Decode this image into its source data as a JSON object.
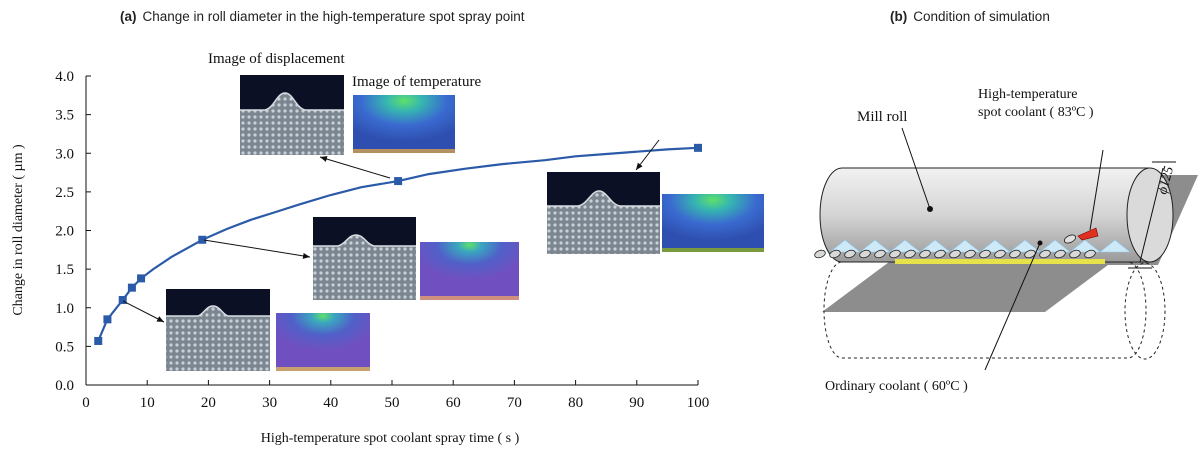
{
  "panel_a": {
    "letter": "(a)",
    "title": "Change in roll diameter in the high-temperature spot spray point"
  },
  "panel_b": {
    "letter": "(b)",
    "title": "Condition of simulation",
    "labels": {
      "mill_roll": "Mill roll",
      "spot_coolant_line1": "High-temperature",
      "spot_coolant_line2": "spot coolant ( 83ºC )",
      "ordinary_coolant": "Ordinary coolant ( 60ºC )",
      "diameter": "ϕ125"
    }
  },
  "insets": {
    "displacement_label": "Image of displacement",
    "temperature_label": "Image of temperature"
  },
  "colors": {
    "line": "#2a5aa8",
    "marker": "#2a5aa8",
    "displacement_bg": "#0c1024",
    "temperature_blue": "#3a6bd0",
    "temperature_purple": "#6a4fc0",
    "hotspot": "#4fdc6a"
  },
  "chart_data": {
    "type": "line",
    "title": "Change in roll diameter in the high-temperature spot spray point",
    "xlabel": "High-temperature spot coolant spray time ( s )",
    "ylabel": "Change in roll diameter ( µm )",
    "xlim": [
      0,
      100
    ],
    "ylim": [
      0,
      4.0
    ],
    "xticks": [
      "0",
      "10",
      "20",
      "30",
      "40",
      "50",
      "60",
      "70",
      "80",
      "90",
      "100"
    ],
    "yticks": [
      "0.0",
      "0.5",
      "1.0",
      "1.5",
      "2.0",
      "2.5",
      "3.0",
      "3.5",
      "4.0"
    ],
    "grid": false,
    "series": [
      {
        "x": [
          2,
          3.5,
          6,
          7.5,
          9,
          19,
          51,
          100
        ],
        "y": [
          0.57,
          0.85,
          1.1,
          1.26,
          1.38,
          1.88,
          2.64,
          3.07
        ],
        "curve_x": [
          2,
          3.5,
          6,
          7.5,
          9,
          11,
          14,
          17,
          19,
          23,
          27,
          31,
          35,
          40,
          45,
          51,
          56,
          62,
          68,
          75,
          80,
          85,
          90,
          95,
          100
        ],
        "curve_y": [
          0.57,
          0.85,
          1.1,
          1.26,
          1.38,
          1.5,
          1.66,
          1.79,
          1.88,
          2.02,
          2.14,
          2.24,
          2.34,
          2.46,
          2.56,
          2.64,
          2.73,
          2.8,
          2.86,
          2.91,
          2.96,
          2.99,
          3.02,
          3.05,
          3.07
        ]
      }
    ]
  }
}
